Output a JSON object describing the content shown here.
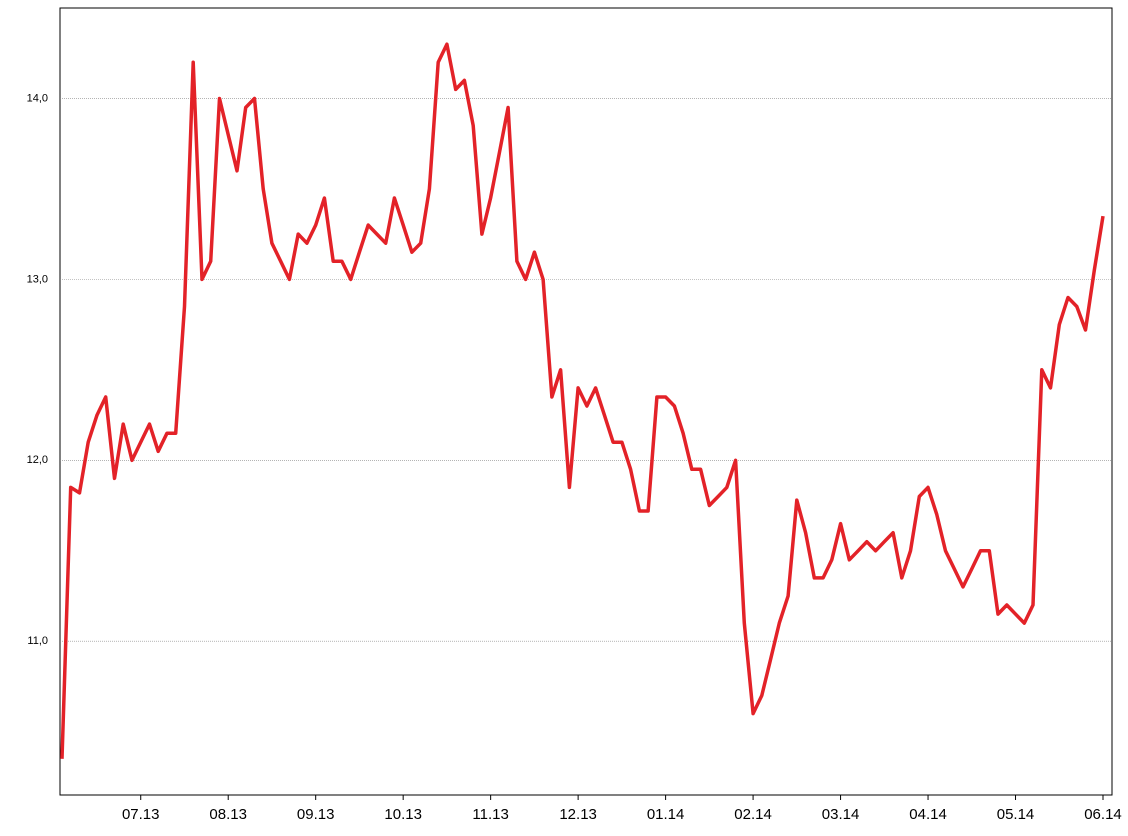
{
  "chart_data": {
    "type": "line",
    "categories": [
      null,
      null,
      null,
      null,
      null,
      null,
      null,
      null,
      null,
      "07.13",
      null,
      null,
      null,
      null,
      null,
      null,
      null,
      null,
      null,
      "08.13",
      null,
      null,
      null,
      null,
      null,
      null,
      null,
      null,
      null,
      "09.13",
      null,
      null,
      null,
      null,
      null,
      null,
      null,
      null,
      null,
      "10.13",
      null,
      null,
      null,
      null,
      null,
      null,
      null,
      null,
      null,
      "11.13",
      null,
      null,
      null,
      null,
      null,
      null,
      null,
      null,
      null,
      "12.13",
      null,
      null,
      null,
      null,
      null,
      null,
      null,
      null,
      null,
      "01.14",
      null,
      null,
      null,
      null,
      null,
      null,
      null,
      null,
      null,
      "02.14",
      null,
      null,
      null,
      null,
      null,
      null,
      null,
      null,
      null,
      "03.14",
      null,
      null,
      null,
      null,
      null,
      null,
      null,
      null,
      null,
      "04.14",
      null,
      null,
      null,
      null,
      null,
      null,
      null,
      null,
      null,
      "05.14",
      null,
      null,
      null,
      null,
      null,
      null,
      null,
      null,
      null,
      "06.14"
    ],
    "series": [
      {
        "color": "#e32228",
        "values": [
          10.35,
          11.85,
          11.82,
          12.1,
          12.25,
          12.35,
          11.9,
          12.2,
          12.0,
          12.1,
          12.2,
          12.05,
          12.15,
          12.15,
          12.85,
          14.2,
          13.0,
          13.1,
          14.0,
          13.8,
          13.6,
          13.95,
          14.0,
          13.5,
          13.2,
          13.1,
          13.0,
          13.25,
          13.2,
          13.3,
          13.45,
          13.1,
          13.1,
          13.0,
          13.15,
          13.3,
          13.25,
          13.2,
          13.45,
          13.3,
          13.15,
          13.2,
          13.5,
          14.2,
          14.3,
          14.05,
          14.1,
          13.85,
          13.25,
          13.45,
          13.7,
          13.95,
          13.1,
          13.0,
          13.15,
          13.0,
          12.35,
          12.5,
          11.85,
          12.4,
          12.3,
          12.4,
          12.25,
          12.1,
          12.1,
          11.95,
          11.72,
          11.72,
          12.35,
          12.35,
          12.3,
          12.15,
          11.95,
          11.95,
          11.75,
          11.8,
          11.85,
          12.0,
          11.1,
          10.6,
          10.7,
          10.9,
          11.1,
          11.25,
          11.78,
          11.6,
          11.35,
          11.35,
          11.45,
          11.65,
          11.45,
          11.5,
          11.55,
          11.5,
          11.55,
          11.6,
          11.35,
          11.5,
          11.8,
          11.85,
          11.7,
          11.5,
          11.4,
          11.3,
          11.4,
          11.5,
          11.5,
          11.15,
          11.2,
          11.15,
          11.1,
          11.2,
          12.5,
          12.4,
          12.75,
          12.9,
          12.85,
          12.72,
          13.05,
          13.35
        ]
      }
    ],
    "ylim": [
      10.15,
      14.5
    ],
    "yticks": [
      {
        "value": 11,
        "label": "11,0"
      },
      {
        "value": 12,
        "label": "12,0"
      },
      {
        "value": 13,
        "label": "13,0"
      },
      {
        "value": 14,
        "label": "14,0"
      }
    ],
    "grid": true
  }
}
